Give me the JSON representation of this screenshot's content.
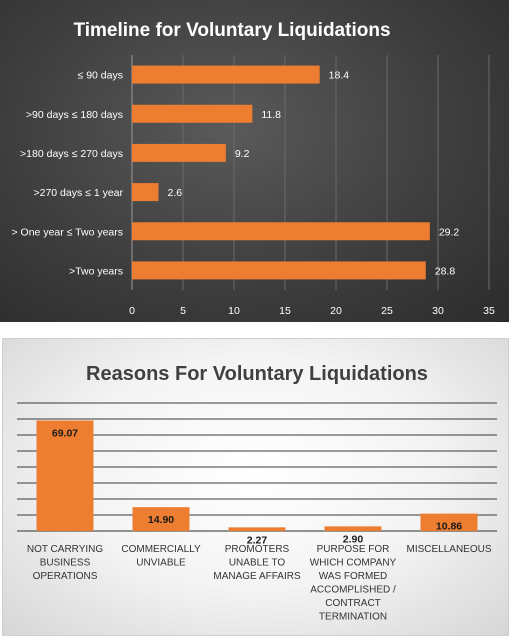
{
  "chart_data": [
    {
      "type": "bar",
      "orientation": "horizontal",
      "title": "Timeline for Voluntary Liquidations",
      "categories": [
        "≤ 90 days",
        ">90 days ≤ 180 days",
        ">180 days ≤ 270 days",
        ">270 days ≤ 1 year",
        "> One year ≤ Two years",
        ">Two years"
      ],
      "values": [
        18.4,
        11.8,
        9.2,
        2.6,
        29.2,
        28.8
      ],
      "data_labels": [
        "18.4",
        "11.8",
        "9.2",
        "2.6",
        "29.2",
        "28.8"
      ],
      "xlim": [
        0,
        35
      ],
      "x_ticks": [
        "0",
        "5",
        "10",
        "15",
        "20",
        "25",
        "30",
        "35"
      ],
      "grid": true,
      "bar_color": "#ED7D31"
    },
    {
      "type": "bar",
      "orientation": "vertical",
      "title": "Reasons For Voluntary Liquidations",
      "categories": [
        [
          "NOT CARRYING",
          "BUSINESS",
          "OPERATIONS"
        ],
        [
          "COMMERCIALLY",
          "UNVIABLE"
        ],
        [
          "PROMOTERS",
          "UNABLE TO",
          "MANAGE AFFAIRS"
        ],
        [
          "PURPOSE FOR",
          "WHICH COMPANY",
          "WAS FORMED",
          "ACCOMPLISHED /",
          "CONTRACT",
          "TERMINATION"
        ],
        [
          "MISCELLANEOUS"
        ]
      ],
      "values": [
        69.07,
        14.9,
        2.27,
        2.9,
        10.86
      ],
      "data_labels": [
        "69.07",
        "14.90",
        "2.27",
        "2.90",
        "10.86"
      ],
      "ylim": [
        0,
        80
      ],
      "grid": true,
      "bar_color": "#ED7D31"
    }
  ]
}
